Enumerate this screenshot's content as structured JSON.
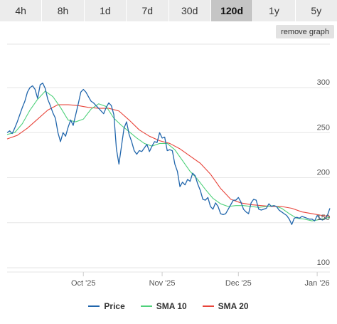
{
  "tabs": [
    {
      "label": "4h"
    },
    {
      "label": "8h"
    },
    {
      "label": "1d"
    },
    {
      "label": "7d"
    },
    {
      "label": "30d"
    },
    {
      "label": "120d",
      "active": true
    },
    {
      "label": "1y"
    },
    {
      "label": "5y"
    }
  ],
  "remove_graph_label": "remove graph",
  "colors": {
    "price": "#2166ac",
    "sma10": "#4fd17b",
    "sma20": "#e8443a",
    "grid": "#e6e6e6"
  },
  "chart_data": {
    "type": "line",
    "title": "",
    "xlabel": "",
    "ylabel": "",
    "ylim": [
      100,
      300
    ],
    "yticks": [
      100,
      150,
      200,
      250,
      300
    ],
    "xlim": [
      "2025-09-01",
      "2026-01-06"
    ],
    "xticks": [
      {
        "date": "2025-10-01",
        "label": "Oct '25"
      },
      {
        "date": "2025-11-01",
        "label": "Nov '25"
      },
      {
        "date": "2025-12-01",
        "label": "Dec '25"
      },
      {
        "date": "2026-01-01",
        "label": "Jan '26"
      }
    ],
    "grid": true,
    "legend_position": "bottom",
    "series": [
      {
        "name": "Price",
        "points": [
          [
            "2025-09-01",
            250
          ],
          [
            "2025-09-02",
            252
          ],
          [
            "2025-09-03",
            249
          ],
          [
            "2025-09-04",
            255
          ],
          [
            "2025-09-05",
            262
          ],
          [
            "2025-09-06",
            270
          ],
          [
            "2025-09-07",
            278
          ],
          [
            "2025-09-08",
            285
          ],
          [
            "2025-09-09",
            295
          ],
          [
            "2025-09-10",
            300
          ],
          [
            "2025-09-11",
            302
          ],
          [
            "2025-09-12",
            298
          ],
          [
            "2025-09-13",
            288
          ],
          [
            "2025-09-14",
            303
          ],
          [
            "2025-09-15",
            305
          ],
          [
            "2025-09-16",
            299
          ],
          [
            "2025-09-17",
            287
          ],
          [
            "2025-09-18",
            280
          ],
          [
            "2025-09-19",
            272
          ],
          [
            "2025-09-20",
            266
          ],
          [
            "2025-09-21",
            250
          ],
          [
            "2025-09-22",
            240
          ],
          [
            "2025-09-23",
            250
          ],
          [
            "2025-09-24",
            246
          ],
          [
            "2025-09-25",
            256
          ],
          [
            "2025-09-26",
            264
          ],
          [
            "2025-09-27",
            258
          ],
          [
            "2025-09-28",
            270
          ],
          [
            "2025-09-29",
            282
          ],
          [
            "2025-09-30",
            295
          ],
          [
            "2025-10-01",
            298
          ],
          [
            "2025-10-02",
            295
          ],
          [
            "2025-10-03",
            290
          ],
          [
            "2025-10-04",
            285
          ],
          [
            "2025-10-05",
            283
          ],
          [
            "2025-10-06",
            280
          ],
          [
            "2025-10-07",
            277
          ],
          [
            "2025-10-08",
            274
          ],
          [
            "2025-10-09",
            271
          ],
          [
            "2025-10-10",
            278
          ],
          [
            "2025-10-11",
            283
          ],
          [
            "2025-10-12",
            280
          ],
          [
            "2025-10-13",
            270
          ],
          [
            "2025-10-14",
            232
          ],
          [
            "2025-10-15",
            215
          ],
          [
            "2025-10-16",
            235
          ],
          [
            "2025-10-17",
            255
          ],
          [
            "2025-10-18",
            262
          ],
          [
            "2025-10-19",
            248
          ],
          [
            "2025-10-20",
            240
          ],
          [
            "2025-10-21",
            230
          ],
          [
            "2025-10-22",
            226
          ],
          [
            "2025-10-23",
            230
          ],
          [
            "2025-10-24",
            229
          ],
          [
            "2025-10-25",
            233
          ],
          [
            "2025-10-26",
            237
          ],
          [
            "2025-10-27",
            229
          ],
          [
            "2025-10-28",
            235
          ],
          [
            "2025-10-29",
            240
          ],
          [
            "2025-10-30",
            239
          ],
          [
            "2025-10-31",
            250
          ],
          [
            "2025-11-01",
            244
          ],
          [
            "2025-11-02",
            245
          ],
          [
            "2025-11-03",
            230
          ],
          [
            "2025-11-04",
            231
          ],
          [
            "2025-11-05",
            230
          ],
          [
            "2025-11-06",
            215
          ],
          [
            "2025-11-07",
            207
          ],
          [
            "2025-11-08",
            190
          ],
          [
            "2025-11-09",
            195
          ],
          [
            "2025-11-10",
            192
          ],
          [
            "2025-11-11",
            198
          ],
          [
            "2025-11-12",
            196
          ],
          [
            "2025-11-13",
            205
          ],
          [
            "2025-11-14",
            202
          ],
          [
            "2025-11-15",
            193
          ],
          [
            "2025-11-16",
            186
          ],
          [
            "2025-11-17",
            176
          ],
          [
            "2025-11-18",
            175
          ],
          [
            "2025-11-19",
            178
          ],
          [
            "2025-11-20",
            168
          ],
          [
            "2025-11-21",
            165
          ],
          [
            "2025-11-22",
            172
          ],
          [
            "2025-11-23",
            168
          ],
          [
            "2025-11-24",
            160
          ],
          [
            "2025-11-25",
            159
          ],
          [
            "2025-11-26",
            160
          ],
          [
            "2025-11-27",
            165
          ],
          [
            "2025-11-28",
            170
          ],
          [
            "2025-11-29",
            175
          ],
          [
            "2025-11-30",
            175
          ],
          [
            "2025-12-01",
            178
          ],
          [
            "2025-12-02",
            173
          ],
          [
            "2025-12-03",
            165
          ],
          [
            "2025-12-04",
            162
          ],
          [
            "2025-12-05",
            160
          ],
          [
            "2025-12-06",
            172
          ],
          [
            "2025-12-07",
            176
          ],
          [
            "2025-12-08",
            175
          ],
          [
            "2025-12-09",
            165
          ],
          [
            "2025-12-10",
            164
          ],
          [
            "2025-12-11",
            165
          ],
          [
            "2025-12-12",
            166
          ],
          [
            "2025-12-13",
            171
          ],
          [
            "2025-12-14",
            168
          ],
          [
            "2025-12-15",
            169
          ],
          [
            "2025-12-16",
            168
          ],
          [
            "2025-12-17",
            164
          ],
          [
            "2025-12-18",
            162
          ],
          [
            "2025-12-19",
            160
          ],
          [
            "2025-12-20",
            158
          ],
          [
            "2025-12-21",
            154
          ],
          [
            "2025-12-22",
            148
          ],
          [
            "2025-12-23",
            155
          ],
          [
            "2025-12-24",
            156
          ],
          [
            "2025-12-25",
            155
          ],
          [
            "2025-12-26",
            157
          ],
          [
            "2025-12-27",
            156
          ],
          [
            "2025-12-28",
            155
          ],
          [
            "2025-12-29",
            154
          ],
          [
            "2025-12-30",
            154
          ],
          [
            "2025-12-31",
            152
          ],
          [
            "2026-01-01",
            158
          ],
          [
            "2026-01-02",
            155
          ],
          [
            "2026-01-03",
            153
          ],
          [
            "2026-01-04",
            154
          ],
          [
            "2026-01-05",
            158
          ],
          [
            "2026-01-06",
            166
          ]
        ]
      },
      {
        "name": "SMA 10",
        "points": [
          [
            "2025-09-01",
            248
          ],
          [
            "2025-09-04",
            250
          ],
          [
            "2025-09-07",
            260
          ],
          [
            "2025-09-10",
            275
          ],
          [
            "2025-09-13",
            287
          ],
          [
            "2025-09-16",
            296
          ],
          [
            "2025-09-19",
            290
          ],
          [
            "2025-09-22",
            278
          ],
          [
            "2025-09-25",
            264
          ],
          [
            "2025-09-28",
            262
          ],
          [
            "2025-10-01",
            265
          ],
          [
            "2025-10-04",
            276
          ],
          [
            "2025-10-07",
            282
          ],
          [
            "2025-10-10",
            279
          ],
          [
            "2025-10-13",
            266
          ],
          [
            "2025-10-16",
            258
          ],
          [
            "2025-10-19",
            251
          ],
          [
            "2025-10-22",
            244
          ],
          [
            "2025-10-25",
            238
          ],
          [
            "2025-10-28",
            235
          ],
          [
            "2025-10-31",
            238
          ],
          [
            "2025-11-03",
            238
          ],
          [
            "2025-11-06",
            231
          ],
          [
            "2025-11-09",
            219
          ],
          [
            "2025-11-12",
            207
          ],
          [
            "2025-11-15",
            198
          ],
          [
            "2025-11-18",
            187
          ],
          [
            "2025-11-21",
            177
          ],
          [
            "2025-11-24",
            171
          ],
          [
            "2025-11-27",
            168
          ],
          [
            "2025-11-30",
            169
          ],
          [
            "2025-12-03",
            169
          ],
          [
            "2025-12-06",
            168
          ],
          [
            "2025-12-09",
            167
          ],
          [
            "2025-12-12",
            168
          ],
          [
            "2025-12-15",
            169
          ],
          [
            "2025-12-18",
            166
          ],
          [
            "2025-12-21",
            160
          ],
          [
            "2025-12-24",
            155
          ],
          [
            "2025-12-27",
            154
          ],
          [
            "2025-12-30",
            152
          ],
          [
            "2026-01-01",
            153
          ],
          [
            "2026-01-06",
            156
          ]
        ]
      },
      {
        "name": "SMA 20",
        "points": [
          [
            "2025-09-01",
            243
          ],
          [
            "2025-09-05",
            247
          ],
          [
            "2025-09-09",
            255
          ],
          [
            "2025-09-13",
            265
          ],
          [
            "2025-09-17",
            275
          ],
          [
            "2025-09-21",
            281
          ],
          [
            "2025-09-25",
            281
          ],
          [
            "2025-09-29",
            280
          ],
          [
            "2025-10-03",
            278
          ],
          [
            "2025-10-07",
            277
          ],
          [
            "2025-10-11",
            277
          ],
          [
            "2025-10-15",
            274
          ],
          [
            "2025-10-19",
            264
          ],
          [
            "2025-10-23",
            253
          ],
          [
            "2025-10-27",
            246
          ],
          [
            "2025-10-31",
            241
          ],
          [
            "2025-11-04",
            238
          ],
          [
            "2025-11-08",
            232
          ],
          [
            "2025-11-12",
            224
          ],
          [
            "2025-11-16",
            216
          ],
          [
            "2025-11-20",
            204
          ],
          [
            "2025-11-24",
            188
          ],
          [
            "2025-11-28",
            176
          ],
          [
            "2025-12-02",
            172
          ],
          [
            "2025-12-06",
            170
          ],
          [
            "2025-12-10",
            169
          ],
          [
            "2025-12-14",
            168
          ],
          [
            "2025-12-18",
            168
          ],
          [
            "2025-12-22",
            166
          ],
          [
            "2025-12-26",
            162
          ],
          [
            "2025-12-30",
            160
          ],
          [
            "2026-01-03",
            158
          ],
          [
            "2026-01-06",
            157
          ]
        ]
      }
    ]
  }
}
